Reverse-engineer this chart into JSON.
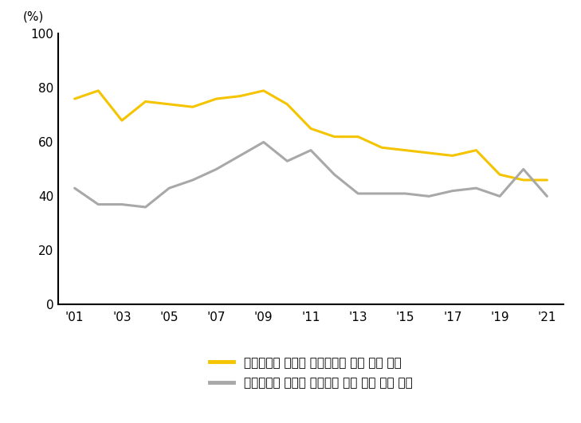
{
  "years": [
    2001,
    2002,
    2003,
    2004,
    2005,
    2006,
    2007,
    2008,
    2009,
    2010,
    2011,
    2012,
    2013,
    2014,
    2015,
    2016,
    2017,
    2018,
    2019,
    2020,
    2021
  ],
  "yellow_line": [
    76,
    79,
    68,
    75,
    74,
    73,
    76,
    77,
    79,
    74,
    65,
    62,
    62,
    58,
    57,
    56,
    55,
    57,
    48,
    46,
    46
  ],
  "gray_line": [
    43,
    37,
    37,
    36,
    43,
    46,
    50,
    55,
    60,
    53,
    57,
    48,
    41,
    41,
    41,
    40,
    42,
    43,
    40,
    50,
    40
  ],
  "yellow_color": "#F5C400",
  "gray_color": "#A8A8A8",
  "ylabel": "(%)",
  "ylim": [
    0,
    100
  ],
  "yticks": [
    0,
    20,
    40,
    60,
    80,
    100
  ],
  "xtick_labels": [
    "'01",
    "'03",
    "'05",
    "'07",
    "'09",
    "'11",
    "'13",
    "'15",
    "'17",
    "'19",
    "'21"
  ],
  "xtick_positions": [
    2001,
    2003,
    2005,
    2007,
    2009,
    2011,
    2013,
    2015,
    2017,
    2019,
    2021
  ],
  "legend1": "금융서비스 흑자의 서비스수지 흑자 대비 비중",
  "legend2": "금융서비스 흑자의 상품수지 적자 규모 대비 비율",
  "line_width": 2.2,
  "background_color": "#ffffff",
  "label_fontsize": 11,
  "legend_fontsize": 11,
  "tick_fontsize": 11
}
